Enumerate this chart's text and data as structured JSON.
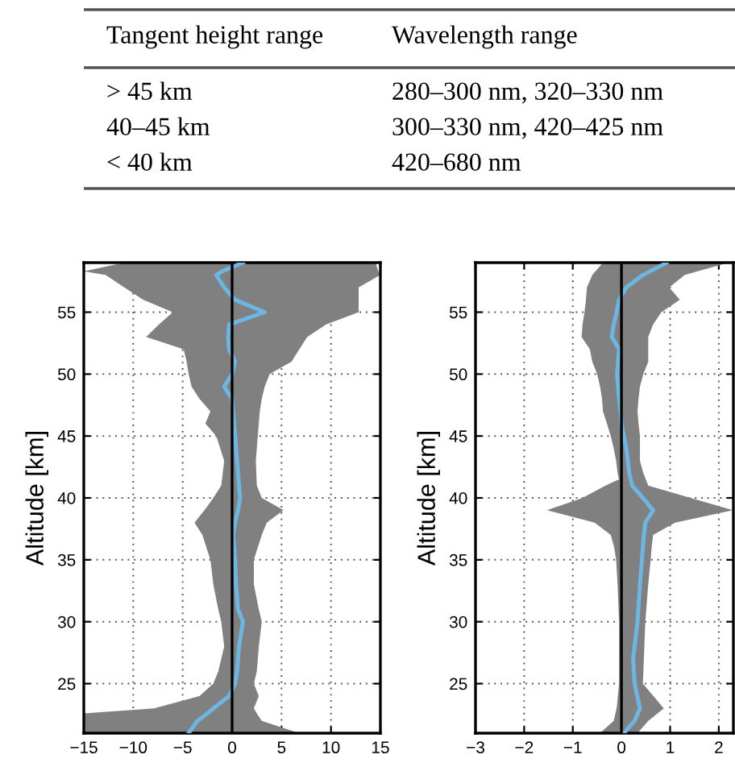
{
  "chart_data": [
    {
      "type": "other",
      "annotations": [
        "Tangent height range",
        "Wavelength range",
        "> 45 km",
        "280–300 nm, 320–330 nm",
        "40–45 km",
        "300–330 nm, 420–425 nm",
        "< 40 km",
        "420–680 nm"
      ]
    },
    {
      "type": "line",
      "orientation": "horizontal",
      "ylabel": "Altitude [km]",
      "xlim": [
        -15,
        15
      ],
      "xticks": [
        {
          "value": -15,
          "label": "−15"
        },
        {
          "value": -10,
          "label": "−10"
        },
        {
          "value": -5,
          "label": "−5"
        },
        0,
        5,
        10,
        15
      ],
      "ylim": [
        21,
        59
      ],
      "yticks": [
        25,
        30,
        35,
        40,
        45,
        50,
        55
      ],
      "grid": true,
      "ref_lines": [
        {
          "axis": "x",
          "value": 0,
          "color": "#000000"
        }
      ],
      "series": [
        {
          "color": "#6cb6e3",
          "x": [
            21,
            22,
            22.6,
            23,
            24,
            25,
            26,
            28,
            30,
            31,
            33,
            35,
            37,
            38,
            39,
            40,
            41,
            43,
            45,
            46,
            47,
            48,
            49,
            50,
            51,
            52,
            53,
            54,
            55,
            56,
            57,
            58,
            58.3,
            59
          ],
          "values": [
            -4.4,
            -3.5,
            -2.5,
            -1.9,
            -0.3,
            0.3,
            0.5,
            0.7,
            1.1,
            0.6,
            0.4,
            0.3,
            0.1,
            0.3,
            0.6,
            0.8,
            0.7,
            0.5,
            0.3,
            0.2,
            0.1,
            0,
            -0.8,
            0,
            0.3,
            -0.3,
            -0.4,
            -0.3,
            3.3,
            0.3,
            -0.8,
            -1.6,
            -1,
            1.1
          ],
          "lower": [
            -15,
            -15,
            -15,
            -7.9,
            -3.3,
            -1.9,
            -1.4,
            -0.8,
            -1.1,
            -1.4,
            -1.9,
            -2.2,
            -3,
            -3.8,
            -2.8,
            -1.9,
            -1.1,
            -0.8,
            -1.6,
            -2.7,
            -2.2,
            -3.3,
            -4.1,
            -4.4,
            -4.6,
            -4.9,
            -8.7,
            -7.4,
            -6,
            -9,
            -10.9,
            -12.8,
            -15,
            -10.9
          ],
          "upper": [
            6.8,
            3,
            2.5,
            2.2,
            2.7,
            2.2,
            2.5,
            2.7,
            3,
            2.7,
            2.2,
            2.2,
            3,
            3.5,
            5.2,
            3,
            2.5,
            2.4,
            2.6,
            2.7,
            2.8,
            3,
            3.3,
            3.8,
            6,
            6.8,
            7.6,
            9.5,
            12.8,
            12.8,
            12.8,
            15,
            14.8,
            14.5
          ]
        }
      ]
    },
    {
      "type": "line",
      "orientation": "horizontal",
      "ylabel": "Altitude [km]",
      "xlim": [
        -3,
        2.3
      ],
      "xticks": [
        {
          "value": -3,
          "label": "−3"
        },
        {
          "value": -2,
          "label": "−2"
        },
        {
          "value": -1,
          "label": "−1"
        },
        0,
        1,
        2
      ],
      "ylim": [
        21,
        59
      ],
      "yticks": [
        25,
        30,
        35,
        40,
        45,
        50,
        55
      ],
      "grid": true,
      "ref_lines": [
        {
          "axis": "x",
          "value": 0,
          "color": "#000000"
        }
      ],
      "series": [
        {
          "color": "#6cb6e3",
          "x": [
            21,
            22,
            23,
            25,
            27,
            30,
            33,
            35,
            36,
            37,
            38,
            39,
            40,
            41,
            41.5,
            42,
            43,
            44,
            45,
            46,
            47,
            48,
            49,
            50,
            51,
            52,
            53,
            54,
            55,
            56,
            57,
            58,
            59
          ],
          "values": [
            0.05,
            0.27,
            0.38,
            0.27,
            0.24,
            0.33,
            0.38,
            0.42,
            0.44,
            0.46,
            0.49,
            0.65,
            0.44,
            0.22,
            0.19,
            0.16,
            0.13,
            0.1,
            0.05,
            0,
            -0.02,
            -0.05,
            -0.07,
            -0.09,
            -0.07,
            -0.05,
            -0.2,
            -0.16,
            -0.1,
            -0.05,
            0.1,
            0.44,
            0.93
          ],
          "lower": [
            -0.44,
            -0.16,
            -0.1,
            -0.05,
            -0.05,
            -0.05,
            -0.08,
            -0.11,
            -0.15,
            -0.22,
            -0.55,
            -1.53,
            -0.8,
            -0.33,
            -0.05,
            -0.08,
            -0.11,
            -0.16,
            -0.22,
            -0.3,
            -0.38,
            -0.4,
            -0.44,
            -0.5,
            -0.6,
            -0.65,
            -0.82,
            -0.8,
            -0.76,
            -0.73,
            -0.71,
            -0.6,
            -0.38
          ],
          "upper": [
            0.33,
            0.55,
            0.87,
            0.44,
            0.46,
            0.49,
            0.55,
            0.6,
            0.62,
            0.65,
            1.1,
            2.29,
            1.42,
            0.55,
            0.5,
            0.45,
            0.38,
            0.38,
            0.38,
            0.35,
            0.33,
            0.35,
            0.38,
            0.45,
            0.55,
            0.55,
            0.55,
            0.65,
            0.82,
            1.2,
            0.98,
            1.3,
            2.2
          ]
        }
      ]
    }
  ]
}
